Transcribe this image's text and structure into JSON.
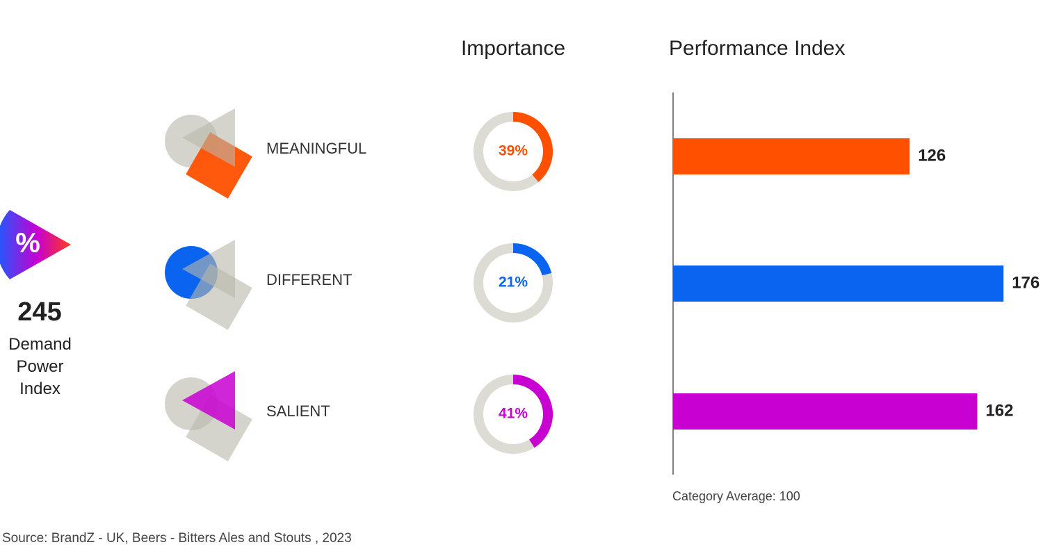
{
  "demand_power": {
    "icon_symbol": "%",
    "value": 245,
    "label": "Demand Power Index"
  },
  "chart_data": [
    {
      "type": "donut",
      "title": "Importance",
      "categories": [
        "MEANINGFUL",
        "DIFFERENT",
        "SALIENT"
      ],
      "values": [
        39,
        21,
        41
      ],
      "value_labels": [
        "39%",
        "21%",
        "41%"
      ],
      "colors": [
        "#ff5000",
        "#0a64f0",
        "#c800d2"
      ],
      "track_color": "#dcdcd5"
    },
    {
      "type": "bar",
      "title": "Performance Index",
      "values": [
        126,
        176,
        162
      ],
      "colors": [
        "#ff5000",
        "#0a64f0",
        "#c800d2"
      ],
      "xlim": [
        0,
        200
      ],
      "note": "Category Average: 100"
    }
  ],
  "source": "Source: BrandZ - UK, Beers - Bitters Ales and Stouts , 2023"
}
